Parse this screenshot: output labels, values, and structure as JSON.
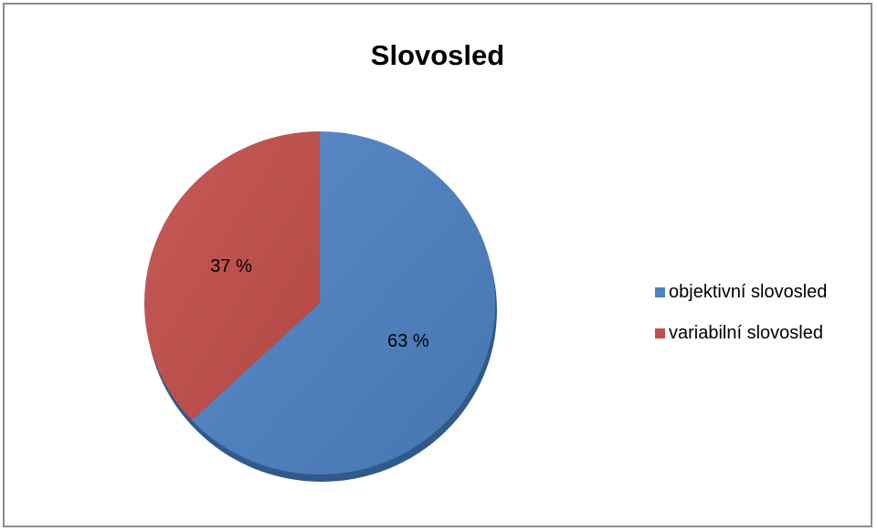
{
  "chart_data": {
    "type": "pie",
    "title": "Slovosled",
    "slices": [
      {
        "label": "objektivní slovosled",
        "value": 63,
        "data_label": "63 %",
        "color": "#4f81bd"
      },
      {
        "label": "variabilní slovosled",
        "value": 37,
        "data_label": "37 %",
        "color": "#c0504d"
      }
    ],
    "legend_position": "right",
    "effect": "3d-shadow"
  }
}
